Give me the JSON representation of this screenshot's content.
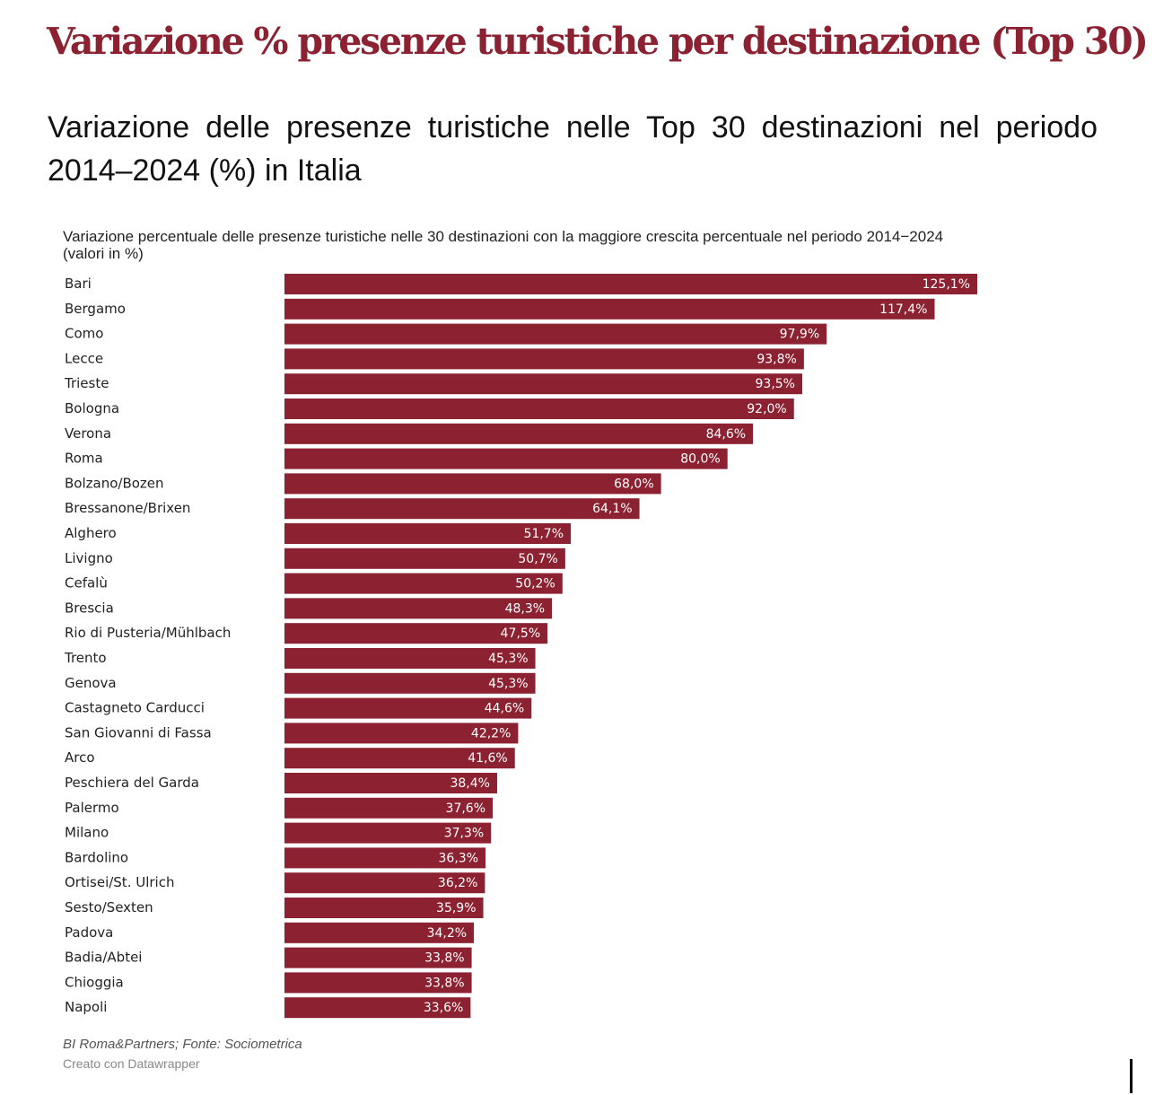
{
  "title": "Variazione % presenze turistiche per destinazione (Top 30)",
  "subtitle": "Variazione delle presenze turistiche nelle Top 30 destinazioni nel periodo 2014–2024 (%) in Italia",
  "colors": {
    "title": "#8b2131",
    "bar": "#8b2131",
    "bar_label": "#ffffff"
  },
  "chart_data": {
    "type": "bar",
    "orientation": "horizontal",
    "title": "Variazione percentuale delle presenze turistiche nelle 30 destinazioni con la maggiore crescita percentuale nel periodo 2014−2024 (valori in %)",
    "categories": [
      "Bari",
      "Bergamo",
      "Como",
      "Lecce",
      "Trieste",
      "Bologna",
      "Verona",
      "Roma",
      "Bolzano/Bozen",
      "Bressanone/Brixen",
      "Alghero",
      "Livigno",
      "Cefalù",
      "Brescia",
      "Rio di Pusteria/Mühlbach",
      "Trento",
      "Genova",
      "Castagneto Carducci",
      "San Giovanni di Fassa",
      "Arco",
      "Peschiera del Garda",
      "Palermo",
      "Milano",
      "Bardolino",
      "Ortisei/St. Ulrich",
      "Sesto/Sexten",
      "Padova",
      "Badia/Abtei",
      "Chioggia",
      "Napoli"
    ],
    "values": [
      125.1,
      117.4,
      97.9,
      93.8,
      93.5,
      92.0,
      84.6,
      80.0,
      68.0,
      64.1,
      51.7,
      50.7,
      50.2,
      48.3,
      47.5,
      45.3,
      45.3,
      44.6,
      42.2,
      41.6,
      38.4,
      37.6,
      37.3,
      36.3,
      36.2,
      35.9,
      34.2,
      33.8,
      33.8,
      33.6
    ],
    "value_labels": [
      "125,1%",
      "117,4%",
      "97,9%",
      "93,8%",
      "93,5%",
      "92,0%",
      "84,6%",
      "80,0%",
      "68,0%",
      "64,1%",
      "51,7%",
      "50,7%",
      "50,2%",
      "48,3%",
      "47,5%",
      "45,3%",
      "45,3%",
      "44,6%",
      "42,2%",
      "41,6%",
      "38,4%",
      "37,6%",
      "37,3%",
      "36,3%",
      "36,2%",
      "35,9%",
      "34,2%",
      "33,8%",
      "33,8%",
      "33,6%"
    ],
    "xlim": [
      0,
      125.1
    ],
    "grid": false,
    "legend": "none"
  },
  "footer": {
    "source": "BI Roma&Partners; Fonte: Sociometrica",
    "credit": "Creato con Datawrapper"
  }
}
